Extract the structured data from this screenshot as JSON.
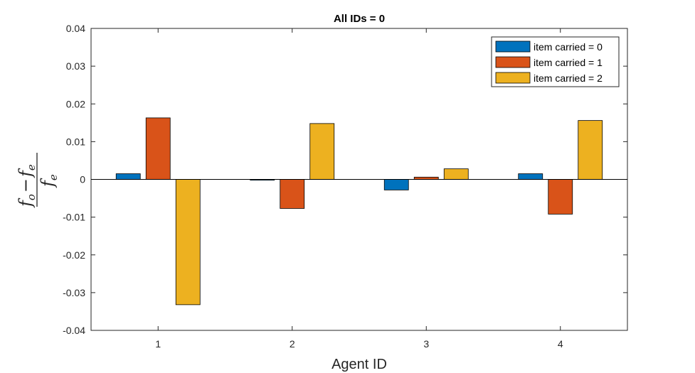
{
  "chart_data": {
    "type": "bar",
    "title": "All IDs = 0",
    "xlabel": "Agent ID",
    "ylabel": {
      "numerator_f": "f",
      "numerator_sub_o": "o",
      "minus": "−",
      "numerator_f2": "f",
      "numerator_sub_e": "e",
      "denominator_f": "f",
      "denominator_sub_e": "e"
    },
    "categories": [
      "1",
      "2",
      "3",
      "4"
    ],
    "ylim": [
      -0.04,
      0.04
    ],
    "yticks": [
      "0.04",
      "0.03",
      "0.02",
      "0.01",
      "0",
      "-0.01",
      "-0.02",
      "-0.03",
      "-0.04"
    ],
    "ytick_values": [
      0.04,
      0.03,
      0.02,
      0.01,
      0,
      -0.01,
      -0.02,
      -0.03,
      -0.04
    ],
    "grid": false,
    "legend_position": "top-right",
    "series": [
      {
        "name": "item carried = 0",
        "color": "#0072BD",
        "values": [
          0.0015,
          -0.0002,
          -0.0028,
          0.0015
        ]
      },
      {
        "name": "item carried = 1",
        "color": "#D95319",
        "values": [
          0.0163,
          -0.0077,
          0.0006,
          -0.0092
        ]
      },
      {
        "name": "item carried = 2",
        "color": "#EDB120",
        "values": [
          -0.0332,
          0.0148,
          0.0028,
          0.0156
        ]
      }
    ]
  }
}
